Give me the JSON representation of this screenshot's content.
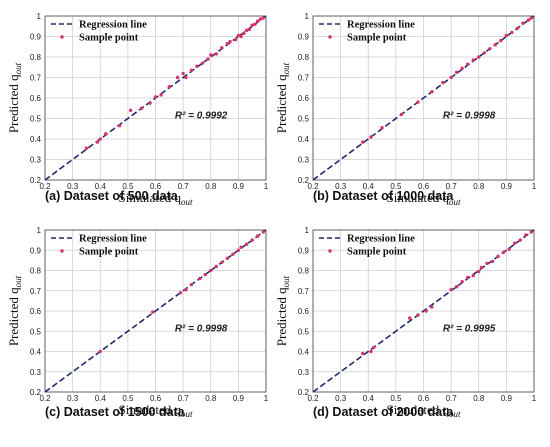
{
  "chart_data": [
    {
      "type": "scatter",
      "caption": "(a) Dataset of 500 data",
      "xlabel": "Simulated q",
      "xlabel_sub": "out",
      "ylabel": "Predicted q",
      "ylabel_sub": "out",
      "r2": "R² = 0.9992",
      "xlim": [
        0.2,
        1.0
      ],
      "ylim": [
        0.2,
        1.0
      ],
      "ticks": [
        "0.2",
        "0.3",
        "0.4",
        "0.5",
        "0.6",
        "0.7",
        "0.8",
        "0.9",
        "1"
      ],
      "grid": true,
      "legend": "top-left",
      "series": [
        {
          "name": "Regression line",
          "style": "dashed",
          "color": "#1f2a6b",
          "x": [
            0.2,
            1.0
          ],
          "y": [
            0.2,
            1.0
          ]
        },
        {
          "name": "Sample point",
          "style": "marker",
          "color": "#d8326a",
          "x": [
            0.35,
            0.39,
            0.4,
            0.42,
            0.47,
            0.51,
            0.55,
            0.58,
            0.6,
            0.62,
            0.65,
            0.68,
            0.7,
            0.71,
            0.73,
            0.75,
            0.77,
            0.79,
            0.8,
            0.82,
            0.84,
            0.86,
            0.87,
            0.89,
            0.9,
            0.91,
            0.92,
            0.93,
            0.94,
            0.95,
            0.96,
            0.97,
            0.98,
            0.99
          ],
          "y": [
            0.355,
            0.385,
            0.4,
            0.425,
            0.465,
            0.54,
            0.55,
            0.575,
            0.605,
            0.615,
            0.655,
            0.7,
            0.72,
            0.7,
            0.735,
            0.755,
            0.77,
            0.79,
            0.81,
            0.815,
            0.845,
            0.865,
            0.875,
            0.885,
            0.905,
            0.9,
            0.915,
            0.93,
            0.935,
            0.955,
            0.96,
            0.975,
            0.985,
            0.99
          ]
        }
      ]
    },
    {
      "type": "scatter",
      "caption": "(b) Dataset of 1000 data",
      "xlabel": "Simulated q",
      "xlabel_sub": "out",
      "ylabel": "Predicted q",
      "ylabel_sub": "out",
      "r2": "R² = 0.9998",
      "xlim": [
        0.2,
        1.0
      ],
      "ylim": [
        0.2,
        1.0
      ],
      "ticks": [
        "0.2",
        "0.3",
        "0.4",
        "0.5",
        "0.6",
        "0.7",
        "0.8",
        "0.9",
        "1"
      ],
      "grid": true,
      "legend": "top-left",
      "series": [
        {
          "name": "Regression line",
          "style": "dashed",
          "color": "#1f2a6b",
          "x": [
            0.2,
            1.0
          ],
          "y": [
            0.2,
            1.0
          ]
        },
        {
          "name": "Sample point",
          "style": "marker",
          "color": "#d8326a",
          "x": [
            0.38,
            0.41,
            0.45,
            0.52,
            0.58,
            0.63,
            0.67,
            0.7,
            0.72,
            0.74,
            0.76,
            0.78,
            0.8,
            0.82,
            0.84,
            0.86,
            0.88,
            0.9,
            0.92,
            0.94,
            0.96,
            0.98,
            0.99
          ],
          "y": [
            0.385,
            0.41,
            0.455,
            0.52,
            0.58,
            0.63,
            0.675,
            0.7,
            0.725,
            0.745,
            0.765,
            0.785,
            0.8,
            0.82,
            0.84,
            0.86,
            0.88,
            0.905,
            0.92,
            0.94,
            0.965,
            0.98,
            0.99
          ]
        }
      ]
    },
    {
      "type": "scatter",
      "caption": "(c) Dataset of 1500 data",
      "xlabel": "Simulated q",
      "xlabel_sub": "out",
      "ylabel": "Predicted q",
      "ylabel_sub": "out",
      "r2": "R² = 0.9998",
      "xlim": [
        0.2,
        1.0
      ],
      "ylim": [
        0.2,
        1.0
      ],
      "ticks": [
        "0.2",
        "0.3",
        "0.4",
        "0.5",
        "0.6",
        "0.7",
        "0.8",
        "0.9",
        "1"
      ],
      "grid": true,
      "legend": "top-left",
      "series": [
        {
          "name": "Regression line",
          "style": "dashed",
          "color": "#1f2a6b",
          "x": [
            0.2,
            1.0
          ],
          "y": [
            0.2,
            1.0
          ]
        },
        {
          "name": "Sample point",
          "style": "marker",
          "color": "#d8326a",
          "x": [
            0.4,
            0.59,
            0.69,
            0.71,
            0.73,
            0.76,
            0.78,
            0.8,
            0.82,
            0.84,
            0.86,
            0.88,
            0.9,
            0.91,
            0.93,
            0.95,
            0.97,
            0.99
          ],
          "y": [
            0.4,
            0.595,
            0.69,
            0.705,
            0.73,
            0.76,
            0.78,
            0.8,
            0.82,
            0.84,
            0.86,
            0.88,
            0.9,
            0.915,
            0.93,
            0.95,
            0.97,
            0.99
          ]
        }
      ]
    },
    {
      "type": "scatter",
      "caption": "(d) Dataset of 2000 data",
      "xlabel": "Simulated q",
      "xlabel_sub": "out",
      "ylabel": "Predicted q",
      "ylabel_sub": "out",
      "r2": "R² = 0.9995",
      "xlim": [
        0.2,
        1.0
      ],
      "ylim": [
        0.2,
        1.0
      ],
      "ticks": [
        "0.2",
        "0.3",
        "0.4",
        "0.5",
        "0.6",
        "0.7",
        "0.8",
        "0.9",
        "1"
      ],
      "grid": true,
      "legend": "top-left",
      "series": [
        {
          "name": "Regression line",
          "style": "dashed",
          "color": "#1f2a6b",
          "x": [
            0.2,
            1.0
          ],
          "y": [
            0.2,
            1.0
          ]
        },
        {
          "name": "Sample point",
          "style": "marker",
          "color": "#d8326a",
          "x": [
            0.38,
            0.41,
            0.42,
            0.55,
            0.58,
            0.61,
            0.63,
            0.7,
            0.72,
            0.74,
            0.76,
            0.78,
            0.8,
            0.81,
            0.83,
            0.85,
            0.87,
            0.89,
            0.91,
            0.93,
            0.95,
            0.97,
            0.99
          ],
          "y": [
            0.39,
            0.4,
            0.42,
            0.565,
            0.58,
            0.6,
            0.62,
            0.705,
            0.72,
            0.745,
            0.765,
            0.775,
            0.795,
            0.815,
            0.835,
            0.845,
            0.87,
            0.89,
            0.905,
            0.935,
            0.95,
            0.975,
            0.99
          ]
        }
      ]
    }
  ]
}
